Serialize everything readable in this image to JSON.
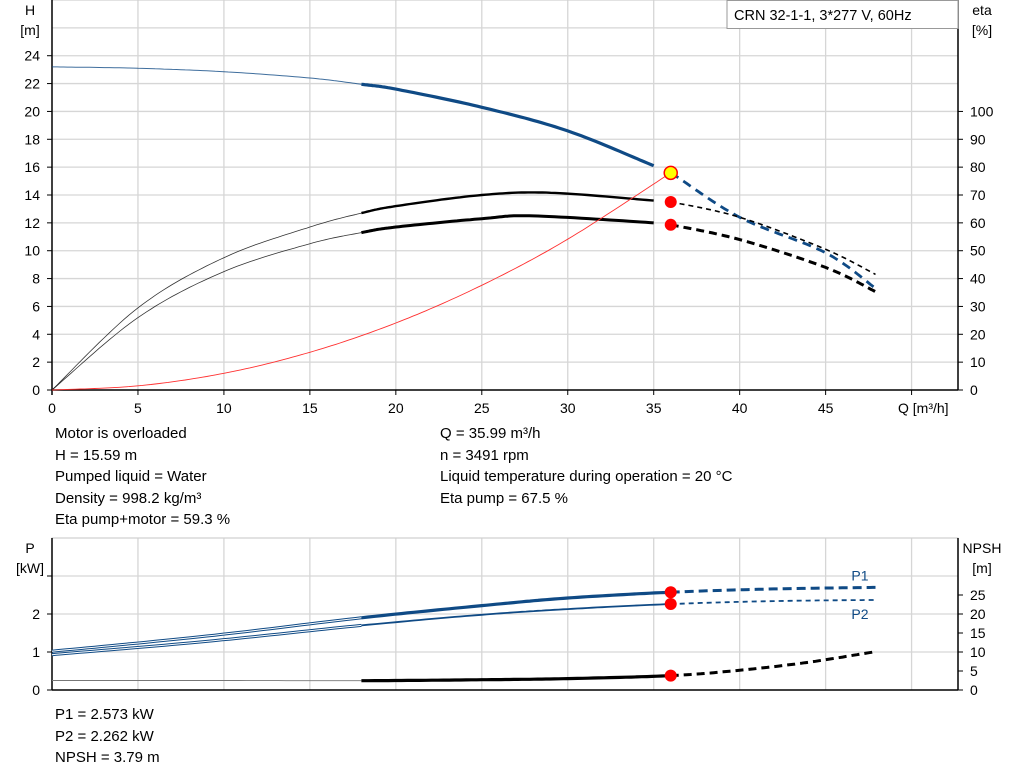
{
  "chart_data": [
    {
      "type": "line",
      "title": "CRN 32-1-1, 3*277 V, 60Hz",
      "xlabel": "Q [m³/h]",
      "ylabel_left": [
        "H",
        "[m]"
      ],
      "ylabel_right": [
        "eta",
        "[%]"
      ],
      "xlim": [
        0,
        52.7
      ],
      "ylim_left": [
        0,
        28
      ],
      "ylim_right": [
        0,
        140
      ],
      "xticks": [
        0,
        5,
        10,
        15,
        20,
        25,
        30,
        35,
        40,
        45
      ],
      "yticks_left": [
        0,
        2,
        4,
        6,
        8,
        10,
        12,
        14,
        16,
        18,
        20,
        22,
        24
      ],
      "yticks_right": [
        0,
        10,
        20,
        30,
        40,
        50,
        60,
        70,
        80,
        90,
        100
      ],
      "grid": true,
      "colors": {
        "head": "#0f4a85",
        "eta": "#000000",
        "system": "#ff3030",
        "point": "#ff0000",
        "op_point": "#ffff00"
      },
      "operating_point": {
        "Q": 35.99,
        "H": 15.59,
        "eta_pump": 67.5,
        "eta_pump_motor": 59.3
      },
      "series": [
        {
          "key": "H",
          "axis": "left",
          "x": [
            0,
            5,
            10,
            15,
            18,
            20,
            25,
            30,
            35,
            35.99,
            40,
            45,
            47.9
          ],
          "y": [
            23.2,
            23.1,
            22.85,
            22.4,
            21.95,
            21.6,
            20.3,
            18.6,
            16.1,
            15.59,
            12.4,
            9.85,
            7.3
          ]
        },
        {
          "key": "eta_pump",
          "axis": "right",
          "x": [
            0,
            5,
            10,
            15,
            18,
            20,
            25,
            29,
            35,
            35.99,
            40,
            45,
            47.9
          ],
          "y": [
            0,
            29.5,
            47.5,
            58.5,
            63.5,
            66,
            70,
            70.8,
            68,
            67.5,
            62,
            50.5,
            41.5
          ]
        },
        {
          "key": "eta_pump_motor",
          "axis": "right",
          "x": [
            0,
            5,
            10,
            15,
            18,
            20,
            25,
            28,
            35,
            35.99,
            40,
            45,
            47.9
          ],
          "y": [
            0,
            26,
            42.5,
            52.5,
            56.5,
            58.5,
            61.5,
            62.5,
            60,
            59.3,
            54,
            44,
            35.3
          ]
        },
        {
          "key": "system",
          "axis": "left",
          "x": [
            0,
            5,
            10,
            15,
            20,
            25,
            30,
            35.99
          ],
          "y": [
            0,
            0.3,
            1.2,
            2.71,
            4.81,
            7.52,
            10.83,
            15.59
          ]
        }
      ]
    },
    {
      "type": "line",
      "ylabel_left": [
        "P",
        "[kW]"
      ],
      "ylabel_right": [
        "NPSH",
        "[m]"
      ],
      "xlim": [
        0,
        52.7
      ],
      "ylim_left": [
        0,
        4
      ],
      "ylim_right": [
        0,
        40
      ],
      "yticks_left": [
        0,
        1,
        2
      ],
      "yticks_left_unlabeled": [
        3
      ],
      "yticks_right": [
        0,
        5,
        10,
        15,
        20,
        25
      ],
      "grid": true,
      "operating_point": {
        "Q": 35.99,
        "P1": 2.573,
        "P2": 2.262,
        "NPSH": 3.79
      },
      "series": [
        {
          "key": "P1",
          "name": "P1",
          "axis": "left",
          "x": [
            0,
            9,
            18,
            25,
            30,
            35.99,
            42,
            47.9
          ],
          "y": [
            1.02,
            1.42,
            1.9,
            2.22,
            2.42,
            2.573,
            2.66,
            2.7
          ]
        },
        {
          "key": "P2",
          "name": "P2",
          "axis": "left",
          "x": [
            0,
            9,
            18,
            25,
            30,
            35.99,
            42,
            47.9
          ],
          "y": [
            0.93,
            1.28,
            1.7,
            1.98,
            2.13,
            2.262,
            2.34,
            2.37
          ]
        },
        {
          "key": "NPSH",
          "axis": "right",
          "x": [
            0,
            9,
            18,
            25,
            30,
            35.99,
            40,
            44,
            47.9
          ],
          "y": [
            2.5,
            2.5,
            2.45,
            2.7,
            3.0,
            3.79,
            5.2,
            7.3,
            10.1
          ]
        }
      ]
    }
  ],
  "info_top_left": [
    "Motor is overloaded",
    "H = 15.59 m",
    "Pumped liquid = Water",
    "Density = 998.2 kg/m³",
    "Eta pump+motor = 59.3 %"
  ],
  "info_top_right": [
    "Q = 35.99 m³/h",
    "n = 3491 rpm",
    "Liquid temperature during operation = 20 °C",
    "Eta pump = 67.5 %"
  ],
  "info_bottom": [
    "P1 = 2.573 kW",
    "P2 = 2.262 kW",
    "NPSH = 3.79 m"
  ]
}
